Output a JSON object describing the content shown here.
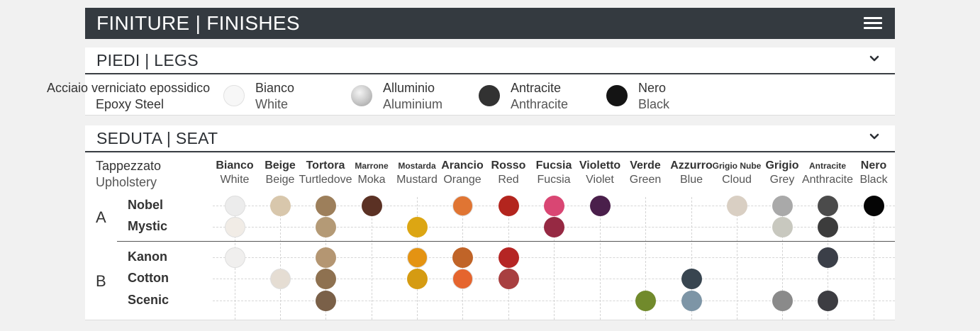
{
  "header": {
    "title_strong": "FINITURE",
    "separator": "|",
    "title_light": "FINISHES",
    "menu_icon": "hamburger-menu-icon"
  },
  "legs": {
    "section_title_strong": "PIEDI",
    "separator": "|",
    "section_title_light": "LEGS",
    "material_it": "Acciaio verniciato epossidico",
    "material_en": "Epoxy Steel",
    "colors": [
      {
        "it": "Bianco",
        "en": "White",
        "hex": "#f6f6f6"
      },
      {
        "it": "Alluminio",
        "en": "Aluminium",
        "hex": "#c8c8c8"
      },
      {
        "it": "Antracite",
        "en": "Anthracite",
        "hex": "#323232"
      },
      {
        "it": "Nero",
        "en": "Black",
        "hex": "#141414"
      }
    ]
  },
  "seat": {
    "section_title_strong": "SEDUTA",
    "separator": "|",
    "section_title_light": "SEAT",
    "label_it": "Tappezzato",
    "label_en": "Upholstery",
    "columns": [
      {
        "it": "Bianco",
        "en": "White"
      },
      {
        "it": "Beige",
        "en": "Beige"
      },
      {
        "it": "Tortora",
        "en": "Turtledove"
      },
      {
        "it": "Marrone",
        "en": "Moka"
      },
      {
        "it": "Mostarda",
        "en": "Mustard"
      },
      {
        "it": "Arancio",
        "en": "Orange"
      },
      {
        "it": "Rosso",
        "en": "Red"
      },
      {
        "it": "Fucsia",
        "en": "Fucsia"
      },
      {
        "it": "Violetto",
        "en": "Violet"
      },
      {
        "it": "Verde",
        "en": "Green"
      },
      {
        "it": "Azzurro",
        "en": "Blue"
      },
      {
        "it": "Grigio Nube",
        "en": "Cloud"
      },
      {
        "it": "Grigio",
        "en": "Grey"
      },
      {
        "it": "Antracite",
        "en": "Anthracite"
      },
      {
        "it": "Nero",
        "en": "Black"
      }
    ],
    "groups": [
      {
        "letter": "A",
        "rows": [
          {
            "name": "Nobel",
            "swatches": [
              [
                "#ececec",
                0
              ],
              [
                "#d8c7ac",
                1
              ],
              [
                "#9d7f5b",
                2
              ],
              [
                "#5b3124",
                3
              ],
              [
                "#e07533",
                5
              ],
              [
                "#b3251e",
                6
              ],
              [
                "#d94673",
                7
              ],
              [
                "#4a1f4b",
                8
              ],
              [
                "#d9cfc3",
                11
              ],
              [
                "#a9a9a9",
                12
              ],
              [
                "#4b4b4b",
                13
              ],
              [
                "#050505",
                14
              ]
            ]
          },
          {
            "name": "Mystic",
            "swatches": [
              [
                "#f1ece6",
                0
              ],
              [
                "#b49a76",
                2
              ],
              [
                "#dca613",
                4
              ],
              [
                "#962943",
                7
              ],
              [
                "#c8c8bf",
                12
              ],
              [
                "#3c3c3c",
                13
              ]
            ]
          }
        ]
      },
      {
        "letter": "B",
        "rows": [
          {
            "name": "Kanon",
            "swatches": [
              [
                "#f0efee",
                0
              ],
              [
                "#b49672",
                2
              ],
              [
                "#e49312",
                4
              ],
              [
                "#c06428",
                5
              ],
              [
                "#b52524",
                6
              ],
              [
                "#3b3f48",
                13
              ]
            ]
          },
          {
            "name": "Cotton",
            "swatches": [
              [
                "#e5ddd3",
                1
              ],
              [
                "#8e7150",
                2
              ],
              [
                "#d59b12",
                4
              ],
              [
                "#e5652e",
                5
              ],
              [
                "#a83f40",
                6
              ],
              [
                "#384550",
                10
              ]
            ]
          },
          {
            "name": "Scenic",
            "swatches": [
              [
                "#7a6048",
                2
              ],
              [
                "#718a2c",
                9
              ],
              [
                "#7d95a6",
                10
              ],
              [
                "#8a8a8a",
                12
              ],
              [
                "#3d3d42",
                13
              ]
            ]
          }
        ]
      }
    ]
  }
}
